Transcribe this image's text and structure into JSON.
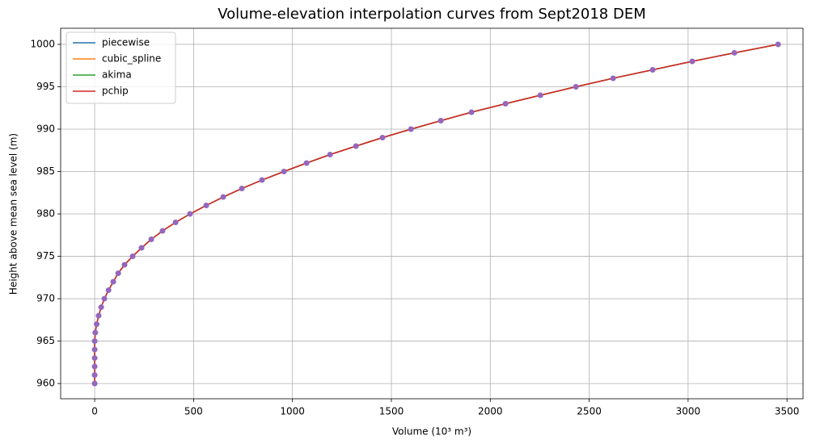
{
  "chart_data": {
    "type": "line",
    "title": "Volume-elevation interpolation curves from Sept2018 DEM",
    "x_label": "Volume (10³ m³)",
    "y_label": "Height above mean sea level (m)",
    "x": [
      0,
      0,
      0,
      0,
      0,
      0,
      3,
      10,
      20,
      33,
      49,
      70,
      94,
      119,
      151,
      192,
      237,
      286,
      343,
      409,
      482,
      564,
      650,
      744,
      846,
      957,
      1071,
      1190,
      1321,
      1455,
      1599,
      1750,
      1905,
      2077,
      2253,
      2433,
      2621,
      2821,
      3021,
      3234,
      3455
    ],
    "series": [
      {
        "name": "piecewise",
        "color": "#1f77b4",
        "values": [
          960,
          961,
          962,
          963,
          964,
          965,
          966,
          967,
          968,
          969,
          970,
          971,
          972,
          973,
          974,
          975,
          976,
          977,
          978,
          979,
          980,
          981,
          982,
          983,
          984,
          985,
          986,
          987,
          988,
          989,
          990,
          991,
          992,
          993,
          994,
          995,
          996,
          997,
          998,
          999,
          1000
        ]
      },
      {
        "name": "cubic_spline",
        "color": "#ff7f0e",
        "values": [
          960,
          961,
          962,
          963,
          964,
          965,
          966,
          967,
          968,
          969,
          970,
          971,
          972,
          973,
          974,
          975,
          976,
          977,
          978,
          979,
          980,
          981,
          982,
          983,
          984,
          985,
          986,
          987,
          988,
          989,
          990,
          991,
          992,
          993,
          994,
          995,
          996,
          997,
          998,
          999,
          1000
        ]
      },
      {
        "name": "akima",
        "color": "#2ca02c",
        "values": [
          960,
          961,
          962,
          963,
          964,
          965,
          966,
          967,
          968,
          969,
          970,
          971,
          972,
          973,
          974,
          975,
          976,
          977,
          978,
          979,
          980,
          981,
          982,
          983,
          984,
          985,
          986,
          987,
          988,
          989,
          990,
          991,
          992,
          993,
          994,
          995,
          996,
          997,
          998,
          999,
          1000
        ]
      },
      {
        "name": "pchip",
        "color": "#d62728",
        "values": [
          960,
          961,
          962,
          963,
          964,
          965,
          966,
          967,
          968,
          969,
          970,
          971,
          972,
          973,
          974,
          975,
          976,
          977,
          978,
          979,
          980,
          981,
          982,
          983,
          984,
          985,
          986,
          987,
          988,
          989,
          990,
          991,
          992,
          993,
          994,
          995,
          996,
          997,
          998,
          999,
          1000
        ]
      }
    ],
    "points_color": "#9467bd",
    "xlim": [
      -172,
      3581
    ],
    "ylim": [
      958.2,
      1001.9
    ],
    "xticks": [
      0,
      500,
      1000,
      1500,
      2000,
      2500,
      3000,
      3500
    ],
    "yticks": [
      960,
      965,
      970,
      975,
      980,
      985,
      990,
      995,
      1000
    ],
    "grid": true,
    "legend": "upper left"
  }
}
